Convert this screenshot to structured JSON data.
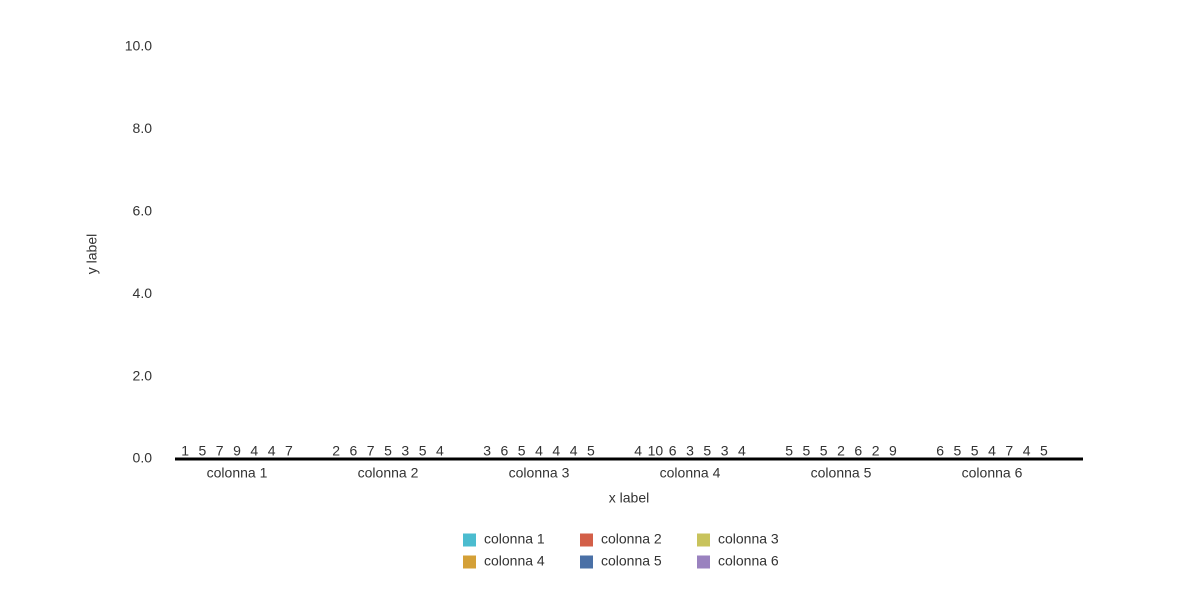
{
  "chart_data": {
    "type": "bar",
    "x_label": "x label",
    "y_label": "y label",
    "categories": [
      "colonna 1",
      "colonna 2",
      "colonna 3",
      "colonna 4",
      "colonna 5",
      "colonna 6"
    ],
    "category_index": [
      1,
      2,
      3,
      4,
      5,
      6
    ],
    "series": [
      {
        "name": "colonna 1",
        "color": "#4bbccf",
        "values": [
          5,
          6,
          6,
          10,
          5,
          5
        ]
      },
      {
        "name": "colonna 2",
        "color": "#d35f48",
        "values": [
          7,
          7,
          5,
          6,
          5,
          5
        ]
      },
      {
        "name": "colonna 3",
        "color": "#c8c35c",
        "values": [
          9,
          5,
          4,
          3,
          2,
          4
        ]
      },
      {
        "name": "colonna 4",
        "color": "#d4a037",
        "values": [
          4,
          3,
          4,
          5,
          6,
          7
        ]
      },
      {
        "name": "colonna 5",
        "color": "#4a70a6",
        "values": [
          4,
          5,
          4,
          3,
          2,
          4
        ]
      },
      {
        "name": "colonna 6",
        "color": "#9a82bf",
        "values": [
          7,
          4,
          5,
          4,
          9,
          5
        ]
      }
    ],
    "ylim": [
      0,
      10
    ],
    "yticks": [
      {
        "value": 0,
        "label": "0.0"
      },
      {
        "value": 2,
        "label": "2.0"
      },
      {
        "value": 4,
        "label": "4.0"
      },
      {
        "value": 6,
        "label": "6.0"
      },
      {
        "value": 8,
        "label": "8.0"
      },
      {
        "value": 10,
        "label": "10.0"
      }
    ]
  }
}
